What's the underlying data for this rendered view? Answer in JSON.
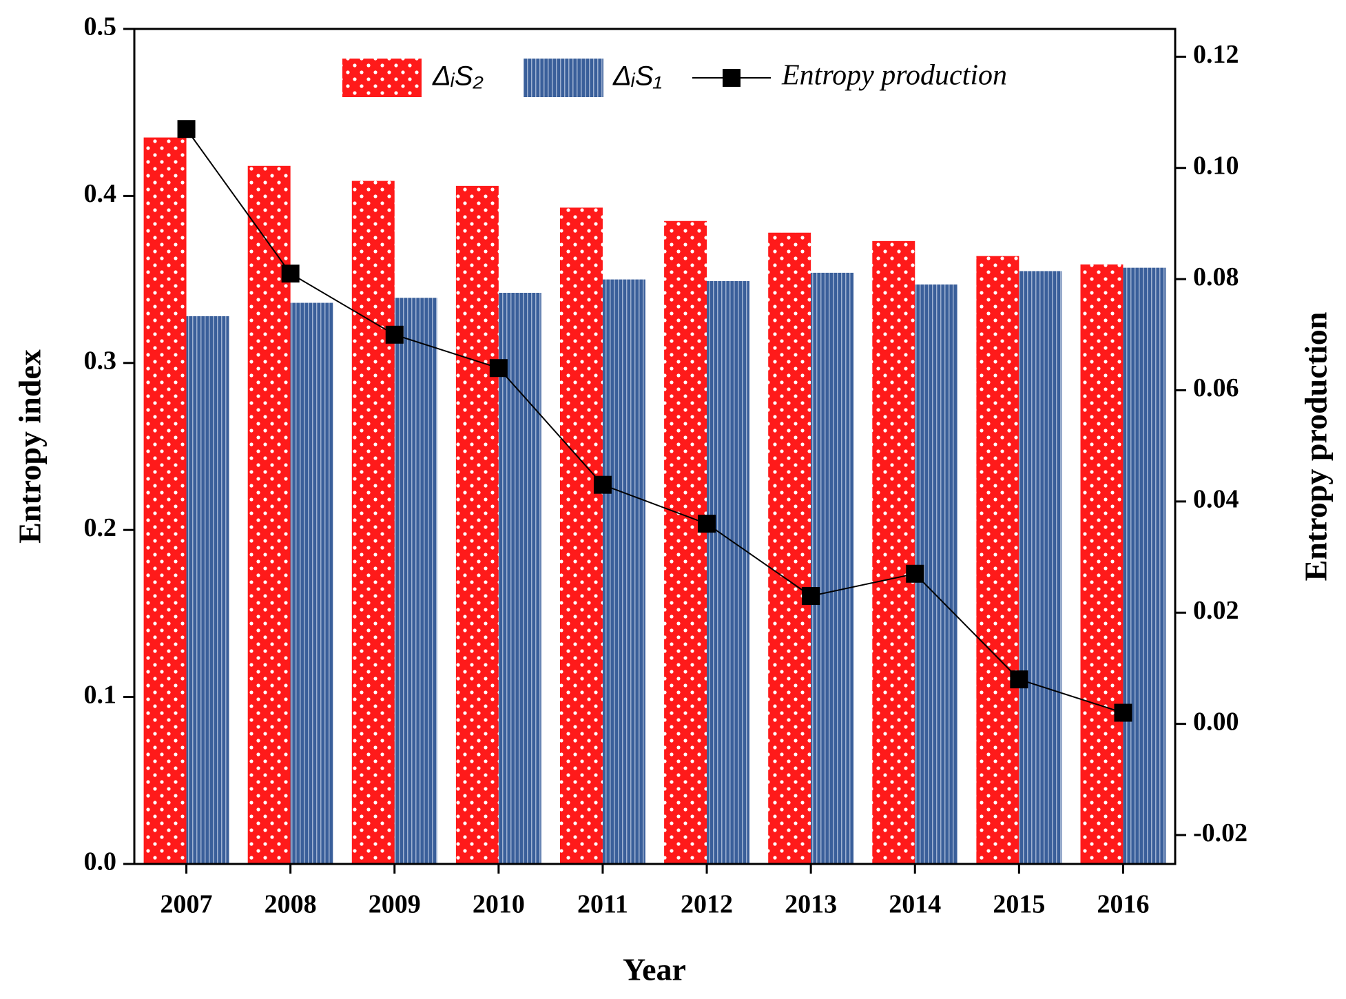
{
  "chart_data": {
    "type": "bar-line",
    "xlabel": "Year",
    "ylabel": "Entropy index",
    "y2label": "Entropy production",
    "categories": [
      "2007",
      "2008",
      "2009",
      "2010",
      "2011",
      "2012",
      "2013",
      "2014",
      "2015",
      "2016"
    ],
    "series": [
      {
        "name": "ΔᵢS₂",
        "type": "bar",
        "color": "#ff1a1a",
        "values": [
          0.435,
          0.418,
          0.409,
          0.406,
          0.393,
          0.385,
          0.378,
          0.373,
          0.364,
          0.359
        ]
      },
      {
        "name": "ΔᵢS₁",
        "type": "bar",
        "color": "#3a5f9a",
        "values": [
          0.328,
          0.336,
          0.339,
          0.342,
          0.35,
          0.349,
          0.354,
          0.347,
          0.355,
          0.357
        ]
      },
      {
        "name": "Entropy production",
        "type": "line",
        "axis": "y2",
        "color": "#000000",
        "values": [
          0.107,
          0.081,
          0.07,
          0.064,
          0.043,
          0.036,
          0.023,
          0.027,
          0.008,
          0.002
        ]
      }
    ],
    "ylim": [
      0,
      0.5
    ],
    "yticks": [
      {
        "value": 0,
        "label": "0.0"
      },
      0.1,
      0.2,
      0.3,
      0.4,
      0.5
    ],
    "y2lim": [
      -0.0252,
      0.125
    ],
    "y2ticks": [
      -0.02,
      {
        "value": 0,
        "label": "0.00"
      },
      0.02,
      0.04,
      0.06,
      0.08,
      {
        "value": 0.1,
        "label": "0.10"
      },
      0.12
    ],
    "legend": "top"
  }
}
